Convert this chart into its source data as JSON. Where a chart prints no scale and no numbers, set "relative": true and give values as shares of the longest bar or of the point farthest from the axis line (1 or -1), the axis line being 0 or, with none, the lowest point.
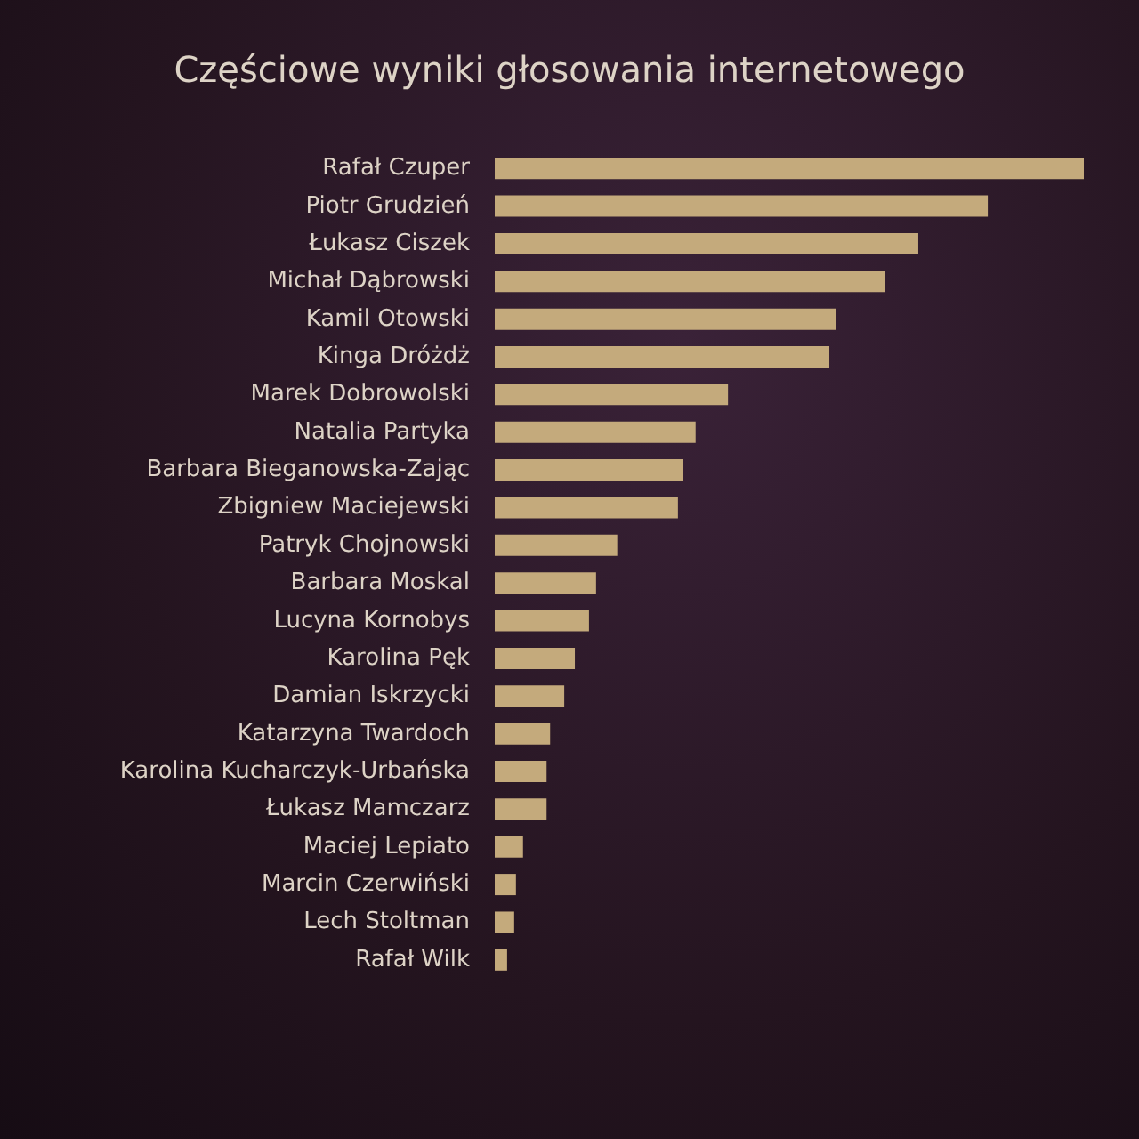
{
  "chart_data": {
    "type": "bar",
    "orientation": "horizontal",
    "relative": true,
    "title": "Częściowe wyniki głosowania internetowego",
    "categories": [
      "Rafał Czuper",
      "Piotr Grudzień",
      "Łukasz Ciszek",
      "Michał Dąbrowski",
      "Kamil Otowski",
      "Kinga Dróżdż",
      "Marek Dobrowolski",
      "Natalia Partyka",
      "Barbara Bieganowska-Zając",
      "Zbigniew Maciejewski",
      "Patryk Chojnowski",
      "Barbara Moskal",
      "Lucyna Kornobys",
      "Karolina Pęk",
      "Damian Iskrzycki",
      "Katarzyna Twardoch",
      "Karolina Kucharczyk-Urbańska",
      "Łukasz Mamczarz",
      "Maciej Lepiato",
      "Marcin Czerwiński",
      "Lech Stoltman",
      "Rafał Wilk"
    ],
    "values": [
      1,
      0.837,
      0.719,
      0.662,
      0.58,
      0.568,
      0.396,
      0.341,
      0.32,
      0.311,
      0.208,
      0.172,
      0.16,
      0.136,
      0.118,
      0.094,
      0.088,
      0.088,
      0.048,
      0.036,
      0.033,
      0.021
    ],
    "color": "#c4aa7c"
  }
}
